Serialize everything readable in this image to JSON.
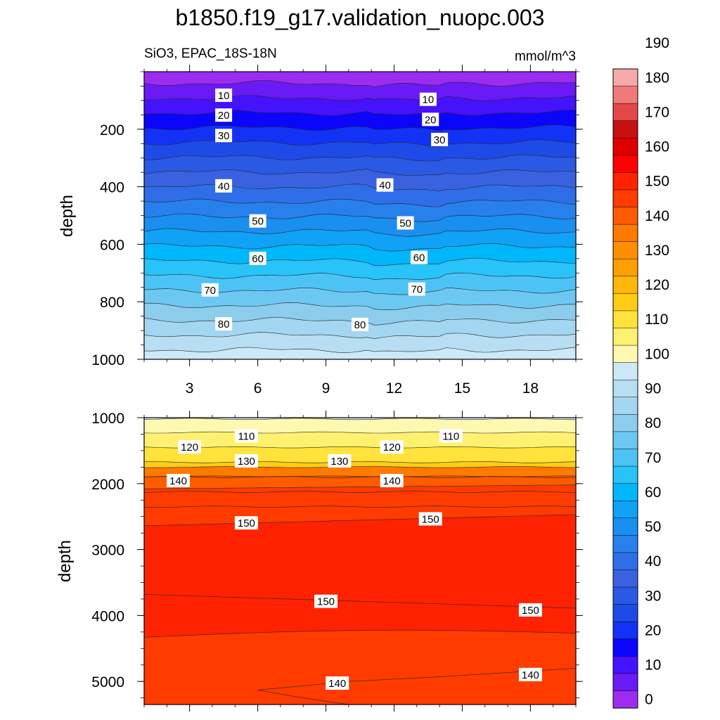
{
  "title": "b1850.f19_g17.validation_nuopc.003",
  "panel_title_left": "SiO3, EPAC_18S-18N",
  "panel_title_right": "mmol/m^3",
  "chart_data": [
    {
      "type": "contour",
      "ylabel": "depth",
      "xlim": [
        1,
        20
      ],
      "ylim": [
        1000,
        0
      ],
      "x_ticks": [
        3,
        6,
        9,
        12,
        15,
        18
      ],
      "y_ticks": [
        200,
        400,
        600,
        800,
        1000
      ],
      "contour_levels": [
        0,
        5,
        10,
        15,
        20,
        25,
        30,
        35,
        40,
        45,
        50,
        55,
        60,
        65,
        70,
        75,
        80,
        85,
        90
      ],
      "contour_labels": [
        {
          "value": 10,
          "x": 4.5,
          "y": 83
        },
        {
          "value": 10,
          "x": 13.5,
          "y": 97
        },
        {
          "value": 20,
          "x": 4.5,
          "y": 152
        },
        {
          "value": 20,
          "x": 13.6,
          "y": 167
        },
        {
          "value": 30,
          "x": 4.5,
          "y": 223
        },
        {
          "value": 30,
          "x": 14.0,
          "y": 237
        },
        {
          "value": 40,
          "x": 4.5,
          "y": 398
        },
        {
          "value": 40,
          "x": 11.6,
          "y": 395
        },
        {
          "value": 50,
          "x": 6.0,
          "y": 520
        },
        {
          "value": 50,
          "x": 12.5,
          "y": 527
        },
        {
          "value": 60,
          "x": 6.0,
          "y": 650
        },
        {
          "value": 60,
          "x": 13.1,
          "y": 647
        },
        {
          "value": 70,
          "x": 3.9,
          "y": 760
        },
        {
          "value": 70,
          "x": 13.0,
          "y": 757
        },
        {
          "value": 80,
          "x": 4.5,
          "y": 878
        },
        {
          "value": 80,
          "x": 10.5,
          "y": 880
        }
      ]
    },
    {
      "type": "contour",
      "ylabel": "depth",
      "xlim": [
        1,
        20
      ],
      "ylim": [
        5350,
        1000
      ],
      "y_ticks": [
        1000,
        2000,
        3000,
        4000,
        5000
      ],
      "contour_levels": [
        95,
        100,
        105,
        110,
        115,
        120,
        125,
        130,
        135,
        140,
        145,
        150
      ],
      "contour_labels": [
        {
          "value": 110,
          "x": 5.5,
          "y": 1280
        },
        {
          "value": 110,
          "x": 14.5,
          "y": 1280
        },
        {
          "value": 120,
          "x": 3.0,
          "y": 1450
        },
        {
          "value": 120,
          "x": 11.9,
          "y": 1450
        },
        {
          "value": 130,
          "x": 5.5,
          "y": 1660
        },
        {
          "value": 130,
          "x": 9.6,
          "y": 1660
        },
        {
          "value": 140,
          "x": 2.5,
          "y": 1960
        },
        {
          "value": 140,
          "x": 11.9,
          "y": 1960
        },
        {
          "value": 150,
          "x": 5.5,
          "y": 2600
        },
        {
          "value": 150,
          "x": 13.6,
          "y": 2540
        },
        {
          "value": 150,
          "x": 9.0,
          "y": 3790
        },
        {
          "value": 150,
          "x": 18.0,
          "y": 3920
        },
        {
          "value": 140,
          "x": 9.5,
          "y": 5030
        },
        {
          "value": 140,
          "x": 18.0,
          "y": 4900
        }
      ]
    }
  ],
  "colorbar": {
    "labels": [
      0,
      10,
      20,
      30,
      40,
      50,
      60,
      70,
      80,
      90,
      100,
      110,
      120,
      130,
      140,
      150,
      160,
      170,
      180,
      190
    ],
    "colors": [
      "#9e2cf0",
      "#6a1af5",
      "#4512fc",
      "#0c05fb",
      "#1233f5",
      "#1e4be8",
      "#2a59e4",
      "#3a62e0",
      "#2f6ee8",
      "#2880ec",
      "#1a8ff0",
      "#0fa2f6",
      "#00b7fb",
      "#27c3f9",
      "#4dc3f5",
      "#6cc8f1",
      "#8ccced",
      "#a3d6f0",
      "#b7def3",
      "#cde8f6",
      "#fff8b0",
      "#fff170",
      "#ffe33a",
      "#ffcc14",
      "#ffb70a",
      "#ff9f00",
      "#ff8f00",
      "#ff7a00",
      "#ff5b00",
      "#ff3b00",
      "#ff2200",
      "#ff0000",
      "#e10000",
      "#c81010",
      "#e34848",
      "#f07a7a",
      "#f7aaaa"
    ]
  }
}
